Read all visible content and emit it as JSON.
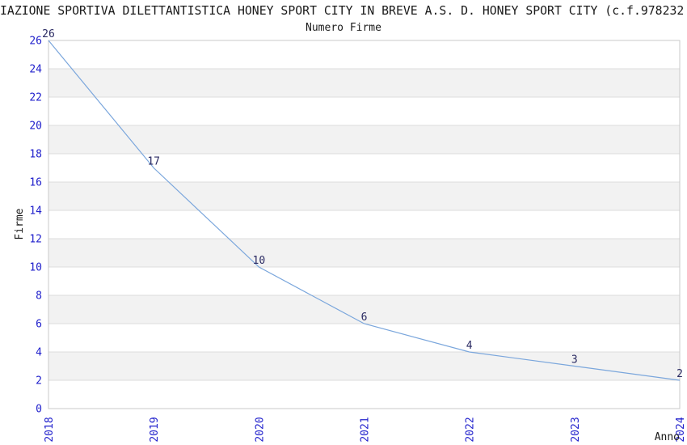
{
  "page": {
    "title_visible": "IAZIONE SPORTIVA DILETTANTISTICA HONEY SPORT CITY IN BREVE A.S. D. HONEY SPORT CITY (c.f.978232",
    "subtitle": "Numero Firme"
  },
  "chart_data": {
    "type": "line",
    "title": "Numero Firme",
    "x": [
      "2018",
      "2019",
      "2020",
      "2021",
      "2022",
      "2023",
      "2024"
    ],
    "values": [
      26,
      17,
      10,
      6,
      4,
      3,
      2
    ],
    "xlabel": "Anno",
    "ylabel": "Firme",
    "ylim": [
      0,
      26
    ],
    "yticks": [
      0,
      2,
      4,
      6,
      8,
      10,
      12,
      14,
      16,
      18,
      20,
      22,
      24,
      26
    ],
    "ytick_step": 2,
    "xtick_rotation": -90,
    "grid": "horizontal gridlines every 2 units with alternating shaded bands",
    "legend": "none",
    "data_labels_shown": true,
    "colors": {
      "line": "#7aa6dc",
      "tick_label": "#2121cc",
      "data_label": "#2b2b63",
      "band": "#f2f2f2",
      "gridline": "#dcdcdc",
      "plot_border": "#c9c9c9",
      "text": "#1a1a1a",
      "background": "#ffffff"
    }
  }
}
